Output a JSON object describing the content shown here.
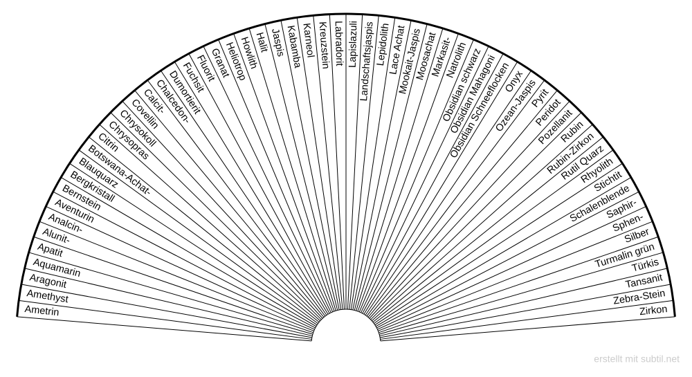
{
  "labels": [
    "Ametrin",
    "Amethyst",
    "Aragonit",
    "Aquamarin",
    "Apatit",
    "Alunit-",
    "Analcin-",
    "Aventurin",
    "Bernstein",
    "Bergkristall",
    "Blauquarz",
    "Botswana-Achat-",
    "Citrin",
    "Chrysopras",
    "Chrysokoll",
    "Covellin",
    "Calcit-",
    "Chalcedon-",
    "Dumortierit",
    "Fuchsit",
    "Fluorit",
    "Granat",
    "Heliotrop",
    "Howlith",
    "Halit",
    "Jaspis",
    "Kabamba",
    "Karneol",
    "Kreuzstein",
    "Labradorit",
    "Lapislazuli",
    "Landschaftsjaspis",
    "Lepidolith",
    "Lace Achat",
    "Mookait-Jaspis",
    "Moosachat",
    "Markasit-",
    "Natrolith",
    "Obsidian schwarz",
    "Obsidian Mahagoni",
    "Obsidian Schneeflocken",
    "Onyx",
    "Ozean-Jaspis",
    "Pyrit",
    "Peridot",
    "Pozellanit",
    "Rubin",
    "Rubin-Zirkon",
    "Rutil Quarz",
    "Rhyolith",
    "Stichtit",
    "Schalenblende",
    "Saphir-",
    "Sphen-",
    "Silber",
    "Turmalin grün",
    "Türkis",
    "Tansanit",
    "Zebra-Stein",
    "Zirkon"
  ],
  "footer": "erstellt mit subtil.net"
}
